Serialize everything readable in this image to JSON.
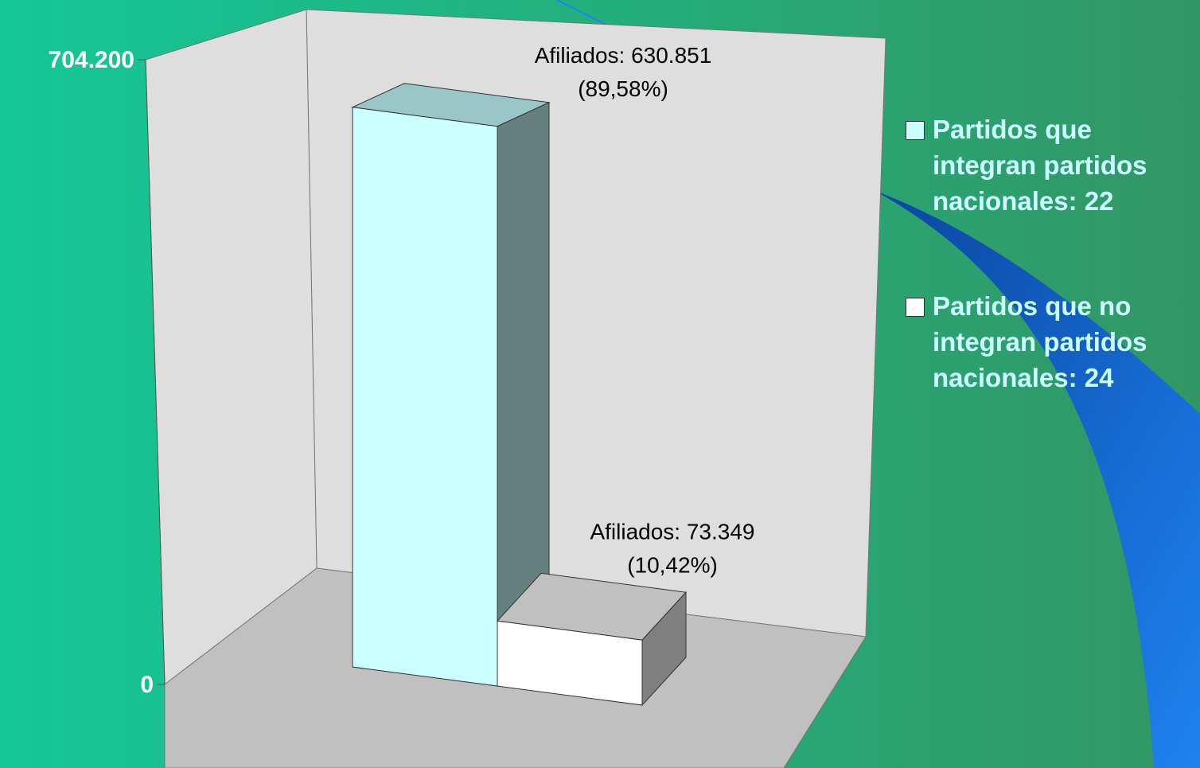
{
  "chart_data": {
    "type": "bar3d",
    "series": [
      {
        "name": "Partidos que integran partidos nacionales: 22",
        "color": "#ccffff",
        "values": [
          630851
        ],
        "value_labels": [
          "Afiliados: 630.851"
        ],
        "share_labels": [
          "(89,58%)"
        ]
      },
      {
        "name": "Partidos que no integran partidos nacionales: 24",
        "color": "#ffffff",
        "values": [
          73349
        ],
        "value_labels": [
          "Afiliados: 73.349"
        ],
        "share_labels": [
          "(10,42%)"
        ]
      }
    ],
    "ylim": [
      0,
      704200
    ],
    "yticks": [
      0,
      {
        "value": 704200,
        "label": "704.200"
      }
    ]
  }
}
